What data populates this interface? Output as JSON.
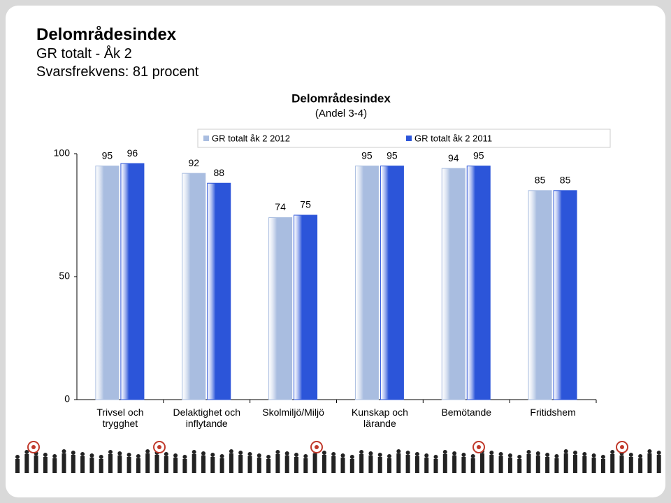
{
  "header": {
    "title": "Delområdesindex",
    "line2": "GR totalt - Åk 2",
    "line3": "Svarsfrekvens: 81 procent"
  },
  "chart_data": {
    "type": "bar",
    "title": "Delområdesindex",
    "subtitle": "(Andel 3-4)",
    "categories": [
      "Trivsel och trygghet",
      "Delaktighet och inflytande",
      "Skolmiljö/Miljö",
      "Kunskap och lärande",
      "Bemötande",
      "Fritidshem"
    ],
    "series": [
      {
        "name": "GR totalt åk 2 2012",
        "color": "#a9bde0",
        "values": [
          95,
          92,
          74,
          95,
          94,
          85
        ]
      },
      {
        "name": "GR totalt åk 2 2011",
        "color": "#2c55d9",
        "values": [
          96,
          88,
          75,
          95,
          95,
          85
        ]
      }
    ],
    "ylim": [
      0,
      100
    ],
    "yticks": [
      0,
      50,
      100
    ],
    "legend": "top"
  }
}
